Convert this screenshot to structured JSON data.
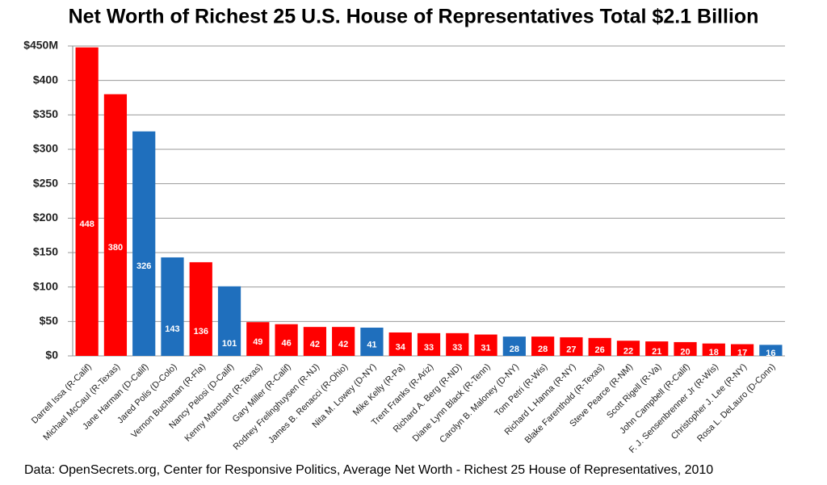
{
  "chart_data": {
    "type": "bar",
    "title": "Net Worth of Richest 25 U.S. House of Representatives  Total $2.1 Billion",
    "note": "Data: OpenSecrets.org, Center for Responsive Politics, Average Net Worth - Richest 25 House of Representatives, 2010",
    "categories": [
      "Darrell Issa (R-Calif)",
      "Michael McCaul (R-Texas)",
      "Jane Harman (D-Calif)",
      "Jared Polis (D-Colo)",
      "Vernon Buchanan (R-Fla)",
      "Nancy Pelosi (D-Calif)",
      "Kenny Marchant (R-Texas)",
      "Gary Miller (R-Calif)",
      "Rodney Frelinghuysen (R-NJ)",
      "James B. Renacci (R-Ohio)",
      "Nita M. Lowey (D-NY)",
      "Mike Kelly (R-Pa)",
      "Trent Franks (R-Ariz)",
      "Richard A. Berg (R-ND)",
      "Diane Lynn Black (R-Tenn)",
      "Carolyn B. Maloney (D-NY)",
      "Tom Petri (R-Wis)",
      "Richard L Hanna (R-NY)",
      "Blake Farenthold (R-Texas)",
      "Steve Pearce (R-NM)",
      "Scott Rigell (R-Va)",
      "John Campbell (R-Calif)",
      "F. J. Sensenbrenner Jr (R-Wis)",
      "Christopher J. Lee (R-NY)",
      "Rosa L. DeLauro (D-Conn)"
    ],
    "values": [
      448,
      380,
      326,
      143,
      136,
      101,
      49,
      46,
      42,
      42,
      41,
      34,
      33,
      33,
      31,
      28,
      28,
      27,
      26,
      22,
      21,
      20,
      18,
      17,
      16
    ],
    "colors": [
      "#ff0000",
      "#ff0000",
      "#1f6fbd",
      "#1f6fbd",
      "#ff0000",
      "#1f6fbd",
      "#ff0000",
      "#ff0000",
      "#ff0000",
      "#ff0000",
      "#1f6fbd",
      "#ff0000",
      "#ff0000",
      "#ff0000",
      "#ff0000",
      "#1f6fbd",
      "#ff0000",
      "#ff0000",
      "#ff0000",
      "#ff0000",
      "#ff0000",
      "#ff0000",
      "#ff0000",
      "#ff0000",
      "#1f6fbd"
    ],
    "ylim": [
      0,
      450
    ],
    "yticks": [
      {
        "value": 0,
        "label": "$0"
      },
      {
        "value": 50,
        "label": "$50"
      },
      {
        "value": 100,
        "label": "$100"
      },
      {
        "value": 150,
        "label": "$150"
      },
      {
        "value": 200,
        "label": "$200"
      },
      {
        "value": 250,
        "label": "$250"
      },
      {
        "value": 300,
        "label": "$300"
      },
      {
        "value": 350,
        "label": "$350"
      },
      {
        "value": 400,
        "label": "$400"
      },
      {
        "value": 450,
        "label": "$450M"
      }
    ],
    "grid": true
  }
}
